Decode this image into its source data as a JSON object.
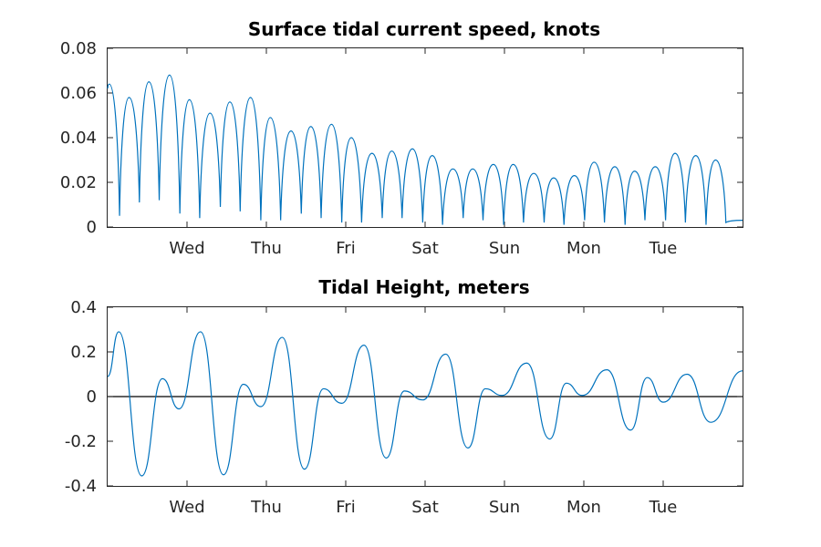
{
  "chart_data": [
    {
      "type": "line",
      "title": "Surface tidal current speed, knots",
      "xlabel": "",
      "ylabel": "",
      "x_range": [
        0,
        8
      ],
      "ylim": [
        0,
        0.08
      ],
      "yticks": [
        "0",
        "0.02",
        "0.04",
        "0.06",
        "0.08"
      ],
      "ytick_values": [
        0,
        0.02,
        0.04,
        0.06,
        0.08
      ],
      "xticks": [
        "Wed",
        "Thu",
        "Fri",
        "Sat",
        "Sun",
        "Mon",
        "Tue"
      ],
      "xtick_values": [
        1,
        2,
        3,
        4,
        5,
        6,
        7
      ],
      "grid": false,
      "color": "#0072BD",
      "peaks": [
        {
          "x": 0.02,
          "y": 0.064
        },
        {
          "x": 0.27,
          "y": 0.058
        },
        {
          "x": 0.52,
          "y": 0.065
        },
        {
          "x": 0.78,
          "y": 0.068
        },
        {
          "x": 1.03,
          "y": 0.057
        },
        {
          "x": 1.29,
          "y": 0.051
        },
        {
          "x": 1.54,
          "y": 0.056
        },
        {
          "x": 1.8,
          "y": 0.058
        },
        {
          "x": 2.05,
          "y": 0.049
        },
        {
          "x": 2.31,
          "y": 0.043
        },
        {
          "x": 2.56,
          "y": 0.045
        },
        {
          "x": 2.82,
          "y": 0.046
        },
        {
          "x": 3.07,
          "y": 0.04
        },
        {
          "x": 3.33,
          "y": 0.033
        },
        {
          "x": 3.58,
          "y": 0.034
        },
        {
          "x": 3.84,
          "y": 0.035
        },
        {
          "x": 4.09,
          "y": 0.032
        },
        {
          "x": 4.35,
          "y": 0.026
        },
        {
          "x": 4.6,
          "y": 0.026
        },
        {
          "x": 4.86,
          "y": 0.028
        },
        {
          "x": 5.11,
          "y": 0.028
        },
        {
          "x": 5.37,
          "y": 0.024
        },
        {
          "x": 5.62,
          "y": 0.022
        },
        {
          "x": 5.88,
          "y": 0.023
        },
        {
          "x": 6.13,
          "y": 0.029
        },
        {
          "x": 6.39,
          "y": 0.027
        },
        {
          "x": 6.64,
          "y": 0.025
        },
        {
          "x": 6.9,
          "y": 0.027
        },
        {
          "x": 7.15,
          "y": 0.033
        },
        {
          "x": 7.41,
          "y": 0.032
        },
        {
          "x": 7.66,
          "y": 0.03
        }
      ],
      "troughs": [
        {
          "x": 0.15,
          "y": 0.005
        },
        {
          "x": 0.4,
          "y": 0.011
        },
        {
          "x": 0.65,
          "y": 0.012
        },
        {
          "x": 0.91,
          "y": 0.006
        },
        {
          "x": 1.16,
          "y": 0.004
        },
        {
          "x": 1.42,
          "y": 0.009
        },
        {
          "x": 1.67,
          "y": 0.007
        },
        {
          "x": 1.93,
          "y": 0.003
        },
        {
          "x": 2.18,
          "y": 0.003
        },
        {
          "x": 2.44,
          "y": 0.006
        },
        {
          "x": 2.69,
          "y": 0.004
        },
        {
          "x": 2.95,
          "y": 0.002
        },
        {
          "x": 3.2,
          "y": 0.002
        },
        {
          "x": 3.46,
          "y": 0.004
        },
        {
          "x": 3.71,
          "y": 0.004
        },
        {
          "x": 3.97,
          "y": 0.002
        },
        {
          "x": 4.22,
          "y": 0.001
        },
        {
          "x": 4.48,
          "y": 0.004
        },
        {
          "x": 4.73,
          "y": 0.003
        },
        {
          "x": 4.99,
          "y": 0.001
        },
        {
          "x": 5.24,
          "y": 0.002
        },
        {
          "x": 5.5,
          "y": 0.002
        },
        {
          "x": 5.75,
          "y": 0.001
        },
        {
          "x": 6.01,
          "y": 0.003
        },
        {
          "x": 6.26,
          "y": 0.002
        },
        {
          "x": 6.52,
          "y": 0.001
        },
        {
          "x": 6.77,
          "y": 0.003
        },
        {
          "x": 7.03,
          "y": 0.003
        },
        {
          "x": 7.28,
          "y": 0.002
        },
        {
          "x": 7.54,
          "y": 0.001
        },
        {
          "x": 7.79,
          "y": 0.002
        }
      ],
      "start": {
        "x": 0,
        "y": 0.062
      },
      "end": {
        "x": 8,
        "y": 0.003
      }
    },
    {
      "type": "line",
      "title": "Tidal Height, meters",
      "xlabel": "",
      "ylabel": "",
      "x_range": [
        0,
        8
      ],
      "ylim": [
        -0.4,
        0.4
      ],
      "yticks": [
        "0.4",
        "0.2",
        "0",
        "-0.2",
        "-0.4"
      ],
      "ytick_values": [
        0.4,
        0.2,
        0,
        -0.2,
        -0.4
      ],
      "xticks": [
        "Wed",
        "Thu",
        "Fri",
        "Sat",
        "Sun",
        "Mon",
        "Tue"
      ],
      "xtick_values": [
        1,
        2,
        3,
        4,
        5,
        6,
        7
      ],
      "reference_line": 0,
      "grid": false,
      "color": "#0072BD",
      "extrema": [
        {
          "x": 0.0,
          "y": 0.09
        },
        {
          "x": 0.14,
          "y": 0.29
        },
        {
          "x": 0.43,
          "y": -0.355
        },
        {
          "x": 0.69,
          "y": 0.08
        },
        {
          "x": 0.9,
          "y": -0.055
        },
        {
          "x": 1.17,
          "y": 0.29
        },
        {
          "x": 1.46,
          "y": -0.35
        },
        {
          "x": 1.71,
          "y": 0.055
        },
        {
          "x": 1.93,
          "y": -0.045
        },
        {
          "x": 2.2,
          "y": 0.265
        },
        {
          "x": 2.48,
          "y": -0.325
        },
        {
          "x": 2.72,
          "y": 0.035
        },
        {
          "x": 2.95,
          "y": -0.03
        },
        {
          "x": 3.23,
          "y": 0.23
        },
        {
          "x": 3.51,
          "y": -0.275
        },
        {
          "x": 3.74,
          "y": 0.025
        },
        {
          "x": 3.97,
          "y": -0.015
        },
        {
          "x": 4.26,
          "y": 0.19
        },
        {
          "x": 4.54,
          "y": -0.23
        },
        {
          "x": 4.76,
          "y": 0.035
        },
        {
          "x": 4.97,
          "y": 0.005
        },
        {
          "x": 5.28,
          "y": 0.15
        },
        {
          "x": 5.57,
          "y": -0.19
        },
        {
          "x": 5.78,
          "y": 0.06
        },
        {
          "x": 5.98,
          "y": 0.005
        },
        {
          "x": 6.29,
          "y": 0.12
        },
        {
          "x": 6.59,
          "y": -0.15
        },
        {
          "x": 6.8,
          "y": 0.085
        },
        {
          "x": 7.0,
          "y": -0.025
        },
        {
          "x": 7.3,
          "y": 0.1
        },
        {
          "x": 7.6,
          "y": -0.115
        },
        {
          "x": 8.0,
          "y": 0.115
        }
      ]
    }
  ]
}
